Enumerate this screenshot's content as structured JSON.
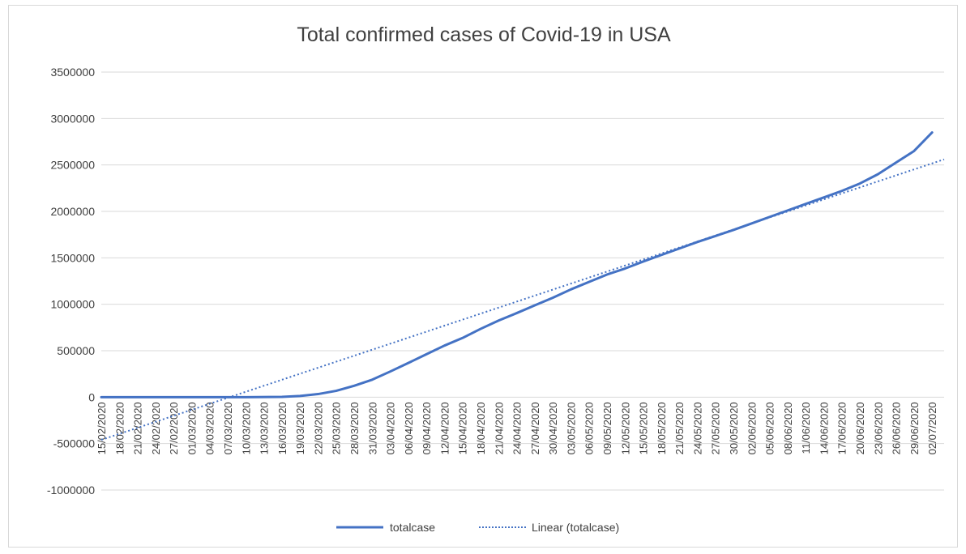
{
  "chart_data": {
    "type": "line",
    "title": "Total confirmed cases of Covid-19 in USA",
    "xlabel": "",
    "ylabel": "",
    "ylim": [
      -1000000,
      3500000
    ],
    "yticks": [
      "3500000",
      "3000000",
      "2500000",
      "2000000",
      "1500000",
      "1000000",
      "500000",
      "0",
      "-500000",
      "-1000000"
    ],
    "xlim": [
      "15/02/2020",
      "04/07/2020"
    ],
    "x_tick_labels": [
      "15/02/2020",
      "18/02/2020",
      "21/02/2020",
      "24/02/2020",
      "27/02/2020",
      "01/03/2020",
      "04/03/2020",
      "07/03/2020",
      "10/03/2020",
      "13/03/2020",
      "16/03/2020",
      "19/03/2020",
      "22/03/2020",
      "25/03/2020",
      "28/03/2020",
      "31/03/2020",
      "03/04/2020",
      "06/04/2020",
      "09/04/2020",
      "12/04/2020",
      "15/04/2020",
      "18/04/2020",
      "21/04/2020",
      "24/04/2020",
      "27/04/2020",
      "30/04/2020",
      "03/05/2020",
      "06/05/2020",
      "09/05/2020",
      "12/05/2020",
      "15/05/2020",
      "18/05/2020",
      "21/05/2020",
      "24/05/2020",
      "27/05/2020",
      "30/05/2020",
      "02/06/2020",
      "05/06/2020",
      "08/06/2020",
      "11/06/2020",
      "14/06/2020",
      "17/06/2020",
      "20/06/2020",
      "23/06/2020",
      "26/06/2020",
      "29/06/2020",
      "02/07/2020"
    ],
    "grid": true,
    "legend_position": "bottom",
    "series": [
      {
        "name": "totalcase",
        "style": "solid",
        "color": "#4472c4",
        "points": [
          {
            "x": "15/02/2020",
            "y": 0
          },
          {
            "x": "01/03/2020",
            "y": 0
          },
          {
            "x": "10/03/2020",
            "y": 0
          },
          {
            "x": "16/03/2020",
            "y": 3000
          },
          {
            "x": "19/03/2020",
            "y": 13000
          },
          {
            "x": "22/03/2020",
            "y": 33000
          },
          {
            "x": "25/03/2020",
            "y": 68000
          },
          {
            "x": "28/03/2020",
            "y": 122000
          },
          {
            "x": "31/03/2020",
            "y": 188000
          },
          {
            "x": "03/04/2020",
            "y": 276000
          },
          {
            "x": "06/04/2020",
            "y": 368000
          },
          {
            "x": "09/04/2020",
            "y": 462000
          },
          {
            "x": "12/04/2020",
            "y": 555000
          },
          {
            "x": "15/04/2020",
            "y": 637000
          },
          {
            "x": "18/04/2020",
            "y": 735000
          },
          {
            "x": "21/04/2020",
            "y": 825000
          },
          {
            "x": "24/04/2020",
            "y": 905000
          },
          {
            "x": "27/04/2020",
            "y": 988000
          },
          {
            "x": "30/04/2020",
            "y": 1070000
          },
          {
            "x": "03/05/2020",
            "y": 1160000
          },
          {
            "x": "06/05/2020",
            "y": 1240000
          },
          {
            "x": "09/05/2020",
            "y": 1320000
          },
          {
            "x": "12/05/2020",
            "y": 1385000
          },
          {
            "x": "15/05/2020",
            "y": 1460000
          },
          {
            "x": "18/05/2020",
            "y": 1530000
          },
          {
            "x": "21/05/2020",
            "y": 1600000
          },
          {
            "x": "24/05/2020",
            "y": 1670000
          },
          {
            "x": "27/05/2020",
            "y": 1735000
          },
          {
            "x": "30/05/2020",
            "y": 1800000
          },
          {
            "x": "02/06/2020",
            "y": 1870000
          },
          {
            "x": "05/06/2020",
            "y": 1940000
          },
          {
            "x": "08/06/2020",
            "y": 2010000
          },
          {
            "x": "11/06/2020",
            "y": 2080000
          },
          {
            "x": "14/06/2020",
            "y": 2150000
          },
          {
            "x": "17/06/2020",
            "y": 2220000
          },
          {
            "x": "20/06/2020",
            "y": 2300000
          },
          {
            "x": "23/06/2020",
            "y": 2400000
          },
          {
            "x": "26/06/2020",
            "y": 2525000
          },
          {
            "x": "29/06/2020",
            "y": 2650000
          },
          {
            "x": "02/07/2020",
            "y": 2850000
          }
        ]
      },
      {
        "name": "Linear (totalcase)",
        "style": "dotted",
        "color": "#4472c4",
        "points": [
          {
            "x": "15/02/2020",
            "y": -460000
          },
          {
            "x": "04/07/2020",
            "y": 2560000
          }
        ]
      }
    ]
  }
}
